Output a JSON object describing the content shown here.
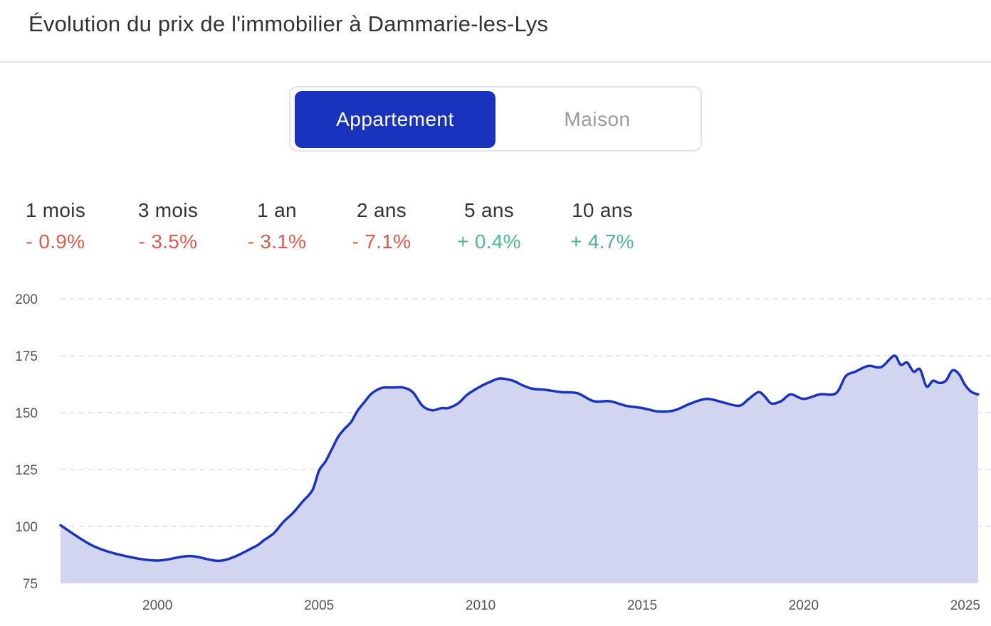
{
  "header": {
    "title": "Évolution du prix de l'immobilier à Dammarie-les-Lys"
  },
  "toggle": {
    "options": [
      "Appartement",
      "Maison"
    ],
    "selected": "Appartement",
    "active_color": "#1a33bf"
  },
  "stats": [
    {
      "label": "1 mois",
      "value": "- 0.9%",
      "trend": "down"
    },
    {
      "label": "3 mois",
      "value": "- 3.5%",
      "trend": "down"
    },
    {
      "label": "1 an",
      "value": "- 3.1%",
      "trend": "down"
    },
    {
      "label": "2 ans",
      "value": "- 7.1%",
      "trend": "down"
    },
    {
      "label": "5 ans",
      "value": "+ 0.4%",
      "trend": "up"
    },
    {
      "label": "10 ans",
      "value": "+ 4.7%",
      "trend": "up"
    }
  ],
  "colors": {
    "down": "#e05a4b",
    "up": "#4cb88e",
    "line": "#1a33bf",
    "area": "#d1d5f0",
    "grid": "#dddddd"
  },
  "chart_data": {
    "type": "area",
    "title": "",
    "xlabel": "",
    "ylabel": "",
    "xlim": [
      1997,
      2025.4
    ],
    "ylim": [
      75,
      200
    ],
    "yticks": [
      75,
      100,
      125,
      150,
      175,
      200
    ],
    "xticks": [
      2000,
      2005,
      2010,
      2015,
      2020,
      2025
    ],
    "grid": "horizontal dashed",
    "legend": "none",
    "series": [
      {
        "x": [
          1997.0,
          1998.0,
          1999.0,
          2000.0,
          2001.0,
          2002.0,
          2003.0,
          2003.3,
          2003.6,
          2003.9,
          2004.2,
          2004.5,
          2004.8,
          2005.0,
          2005.2,
          2005.4,
          2005.6,
          2005.8,
          2006.0,
          2006.2,
          2006.4,
          2006.6,
          2006.8,
          2007.0,
          2007.3,
          2007.6,
          2007.9,
          2008.2,
          2008.5,
          2008.8,
          2009.0,
          2009.3,
          2009.6,
          2010.0,
          2010.3,
          2010.6,
          2011.0,
          2011.3,
          2011.6,
          2012.0,
          2012.5,
          2013.0,
          2013.5,
          2014.0,
          2014.5,
          2015.0,
          2015.5,
          2016.0,
          2016.5,
          2017.0,
          2017.5,
          2018.0,
          2018.3,
          2018.6,
          2018.8,
          2019.0,
          2019.3,
          2019.6,
          2020.0,
          2020.5,
          2021.0,
          2021.3,
          2021.6,
          2022.0,
          2022.4,
          2022.8,
          2023.0,
          2023.2,
          2023.4,
          2023.6,
          2023.8,
          2024.0,
          2024.2,
          2024.4,
          2024.6,
          2024.8,
          2025.0,
          2025.2,
          2025.4
        ],
        "y": [
          100.5,
          91.5,
          87.0,
          85.0,
          87.0,
          85.0,
          91.0,
          94.0,
          97.0,
          102.0,
          106.0,
          111.0,
          116.0,
          124.5,
          128.5,
          134.0,
          139.5,
          143.0,
          146.0,
          151.0,
          154.5,
          158.0,
          160.0,
          161.0,
          161.0,
          161.0,
          159.0,
          153.0,
          151.0,
          152.0,
          152.0,
          154.0,
          158.0,
          161.5,
          163.5,
          165.0,
          164.0,
          162.0,
          160.5,
          160.0,
          159.0,
          158.5,
          155.0,
          155.0,
          153.0,
          152.0,
          150.5,
          151.0,
          154.0,
          156.0,
          154.5,
          153.0,
          156.0,
          159.0,
          157.0,
          154.0,
          155.0,
          158.0,
          156.0,
          158.0,
          158.5,
          166.0,
          168.0,
          170.5,
          170.0,
          175.0,
          171.0,
          172.0,
          168.0,
          169.0,
          161.5,
          164.0,
          163.0,
          164.0,
          168.5,
          167.0,
          162.0,
          159.0,
          158.0
        ]
      }
    ]
  }
}
